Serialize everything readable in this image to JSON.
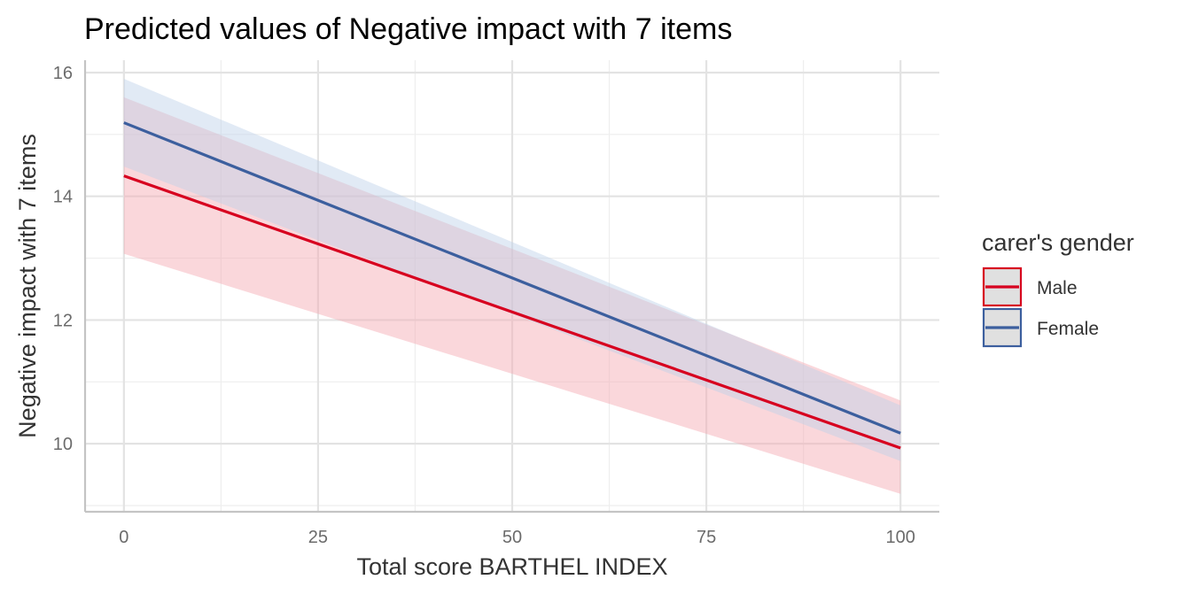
{
  "chart_data": {
    "type": "line",
    "title": "Predicted values of Negative impact with 7 items",
    "xlabel": "Total score BARTHEL INDEX",
    "ylabel": "Negative impact with 7 items",
    "xlim": [
      -5,
      105
    ],
    "ylim": [
      8.9,
      16.2
    ],
    "x_ticks": [
      0,
      25,
      50,
      75,
      100
    ],
    "y_ticks": [
      10,
      12,
      14,
      16
    ],
    "grid": true,
    "legend": {
      "title": "carer's gender",
      "placement": "right"
    },
    "series": [
      {
        "name": "Male",
        "color": "#d7001f",
        "band_color": "#f4a6b0",
        "x": [
          0,
          100
        ],
        "values": [
          14.33,
          9.93
        ],
        "ci_lower": [
          13.07,
          9.19
        ],
        "ci_upper": [
          15.6,
          10.7
        ]
      },
      {
        "name": "Female",
        "color": "#3c5f9e",
        "band_color": "#bdd0e8",
        "x": [
          0,
          100
        ],
        "values": [
          15.19,
          10.17
        ],
        "ci_lower": [
          14.48,
          9.72
        ],
        "ci_upper": [
          15.9,
          10.62
        ]
      }
    ]
  }
}
